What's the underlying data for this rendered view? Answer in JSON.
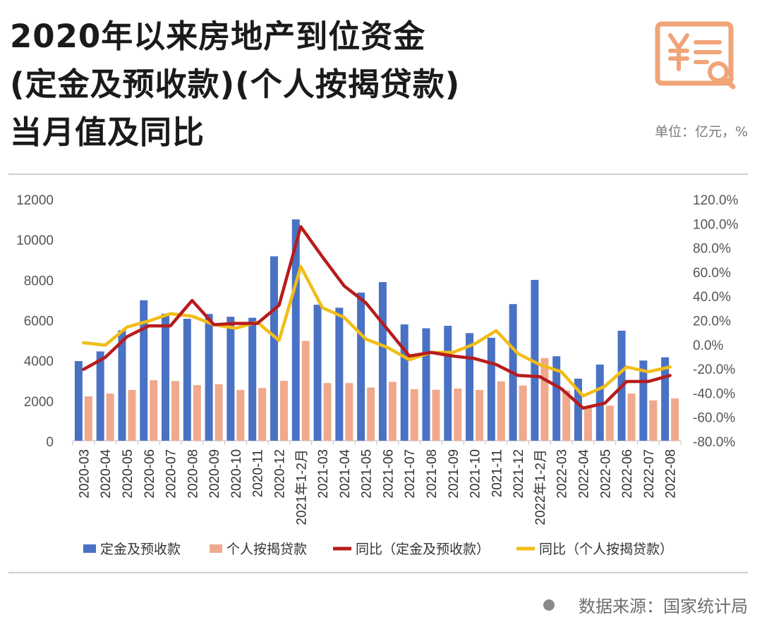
{
  "header": {
    "title_line1": "2020年以来房地产到位资金",
    "title_line2": "(定金及预收款)(个人按揭贷款)",
    "title_line3": "当月值及同比",
    "unit": "单位：亿元，%"
  },
  "footer": {
    "source": "数据来源：国家统计局"
  },
  "colors": {
    "bar1": "#4a72c4",
    "bar2": "#f0a98c",
    "line1": "#b71c1c",
    "line2": "#f2bd15",
    "logo": "#f0a478"
  },
  "logo_icon": "yuan-document-search-icon",
  "chart_data": {
    "type": "bar",
    "categories": [
      "2020-03",
      "2020-04",
      "2020-05",
      "2020-06",
      "2020-07",
      "2020-08",
      "2020-09",
      "2020-10",
      "2020-11",
      "2020-12",
      "2021年1-2月",
      "2021-03",
      "2021-04",
      "2021-05",
      "2021-06",
      "2021-07",
      "2021-08",
      "2021-09",
      "2021-10",
      "2021-11",
      "2021-12",
      "2022年1-2月",
      "2022-03",
      "2022-04",
      "2022-05",
      "2022-06",
      "2022-07",
      "2022-08"
    ],
    "series": [
      {
        "name": "定金及预收款",
        "type": "bar",
        "axis": "left",
        "values": [
          3950,
          4430,
          5480,
          6970,
          6300,
          6050,
          6290,
          6150,
          6100,
          9150,
          10980,
          6750,
          6600,
          7350,
          7870,
          5770,
          5580,
          5700,
          5340,
          5110,
          6780,
          7980,
          4190,
          3080,
          3780,
          5460,
          3980,
          4140
        ]
      },
      {
        "name": "个人按揭贷款",
        "type": "bar",
        "axis": "left",
        "values": [
          2200,
          2340,
          2520,
          3000,
          2960,
          2760,
          2800,
          2520,
          2620,
          2970,
          4950,
          2860,
          2860,
          2640,
          2920,
          2560,
          2530,
          2590,
          2520,
          2950,
          2740,
          4100,
          2490,
          1690,
          1740,
          2340,
          2000,
          2100
        ]
      },
      {
        "name": "同比（定金及预收款）",
        "type": "line",
        "axis": "right",
        "values": [
          -21,
          -11,
          6,
          15,
          15,
          36,
          16,
          17,
          17,
          32,
          97,
          72,
          48,
          34,
          12,
          -10,
          -7,
          -10,
          -12,
          -17,
          -26,
          -27,
          -37,
          -53,
          -49,
          -31,
          -31,
          -26
        ]
      },
      {
        "name": "同比（个人按揭贷款）",
        "type": "line",
        "axis": "right",
        "values": [
          1,
          -1,
          14,
          19,
          25,
          23,
          16,
          13,
          18,
          3,
          64,
          30,
          22,
          4,
          -3,
          -13,
          -7,
          -7,
          0,
          11,
          -8,
          -17,
          -23,
          -43,
          -35,
          -19,
          -23,
          -19
        ]
      }
    ],
    "y_left": {
      "min": 0,
      "max": 12000,
      "ticks": [
        "0",
        "2000",
        "4000",
        "6000",
        "8000",
        "10000",
        "12000"
      ]
    },
    "y_right": {
      "min": -80,
      "max": 120,
      "ticks": [
        "-80.0%",
        "-60.0%",
        "-40.0%",
        "-20.0%",
        "0.0%",
        "20.0%",
        "40.0%",
        "60.0%",
        "80.0%",
        "100.0%",
        "120.0%"
      ]
    },
    "grid": false,
    "legend_position": "bottom"
  }
}
